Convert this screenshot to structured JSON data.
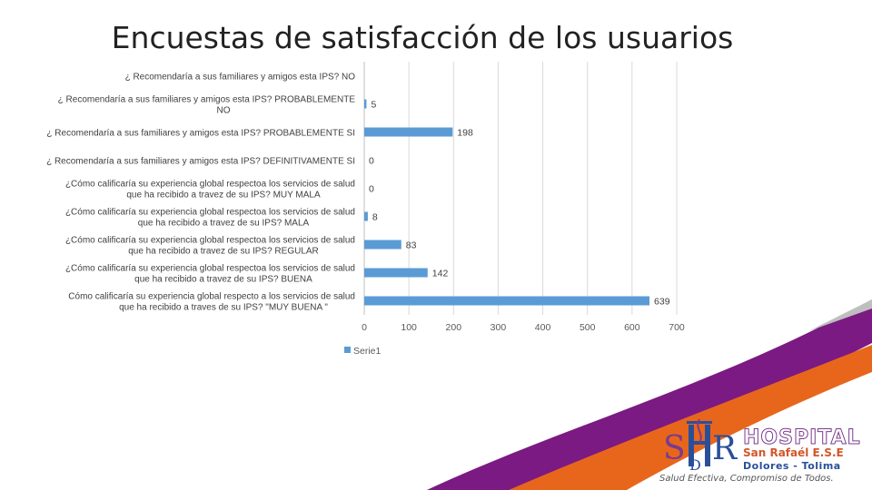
{
  "title": "Encuestas de satisfacción de los usuarios",
  "chart_data": {
    "type": "bar",
    "orientation": "horizontal",
    "categories": [
      [
        "¿ Recomendaría a sus familiares y amigos esta IPS? NO"
      ],
      [
        "¿ Recomendaría a sus familiares y amigos esta IPS?  PROBABLEMENTE",
        "NO"
      ],
      [
        "¿ Recomendaría a sus familiares y amigos esta IPS? PROBABLEMENTE SI"
      ],
      [
        "¿ Recomendaría a sus familiares y amigos esta IPS? DEFINITIVAMENTE SI"
      ],
      [
        "¿Cómo calificaría su experiencia global respectoa los servicios de salud",
        "que ha recibido a travez de su IPS? MUY MALA"
      ],
      [
        "¿Cómo calificaría su experiencia global respectoa los servicios de salud",
        "que ha recibido a travez de su IPS? MALA"
      ],
      [
        "¿Cómo calificaría su experiencia global respectoa los servicios de salud",
        "que ha recibido a travez de su IPS? REGULAR"
      ],
      [
        "¿Cómo calificaría su experiencia global respectoa los servicios de salud",
        "que ha recibido a travez de su IPS? BUENA"
      ],
      [
        "Cómo calificaría su experiencia global respecto a los servicios de salud",
        "que ha recibido a traves de su IPS? \"MUY BUENA \""
      ]
    ],
    "values": [
      null,
      5,
      198,
      0,
      0,
      8,
      83,
      142,
      639
    ],
    "data_labels": [
      "",
      "5",
      "198",
      "0",
      "0",
      "8",
      "83",
      "142",
      "639"
    ],
    "series_name": "Serie1",
    "series_color": "#5b9bd5",
    "xlim": [
      0,
      700
    ],
    "xticks": [
      "0",
      "100",
      "200",
      "300",
      "400",
      "500",
      "600",
      "700"
    ],
    "grid": true,
    "legend": "bottom-left"
  },
  "logo": {
    "letters": "SDHR",
    "hospital": "HOSPITAL",
    "name": "San Rafaél E.S.E",
    "place": "Dolores - Tolima",
    "slogan": "Salud Efectiva, Compromiso de Todos."
  },
  "colors": {
    "wave_purple": "#7b1a82",
    "wave_orange": "#e8661c",
    "wave_gray": "#bfbfbf"
  }
}
